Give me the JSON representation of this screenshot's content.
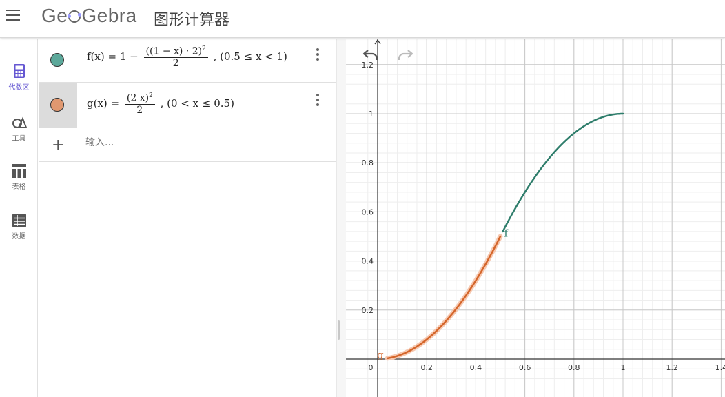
{
  "header": {
    "app_name": "GeoGebra",
    "app_title": "图形计算器"
  },
  "sidebar": {
    "items": [
      {
        "label": "代数区",
        "icon": "calculator-icon",
        "active": true
      },
      {
        "label": "工具",
        "icon": "shapes-icon",
        "active": false
      },
      {
        "label": "表格",
        "icon": "table-icon",
        "active": false
      },
      {
        "label": "数据",
        "icon": "data-icon",
        "active": false
      }
    ]
  },
  "algebra": {
    "f": {
      "color": "#5ca89a",
      "lhs": "f(x)",
      "eq": "=",
      "one": "1 −",
      "num": "((1 − x) · 2)",
      "num_sup": "2",
      "den": "2",
      "domain": ",    (0.5 ≤ x < 1)"
    },
    "g": {
      "color": "#e09870",
      "lhs": "g(x)",
      "eq": "=",
      "num": "(2 x)",
      "num_sup": "2",
      "den": "2",
      "domain": ",    (0 < x ≤ 0.5)"
    },
    "input_placeholder": "输入..."
  },
  "graph": {
    "x_ticks": [
      "0",
      "0.2",
      "0.4",
      "0.6",
      "0.8",
      "1",
      "1.2",
      "1.4"
    ],
    "y_ticks": [
      "0.2",
      "0.4",
      "0.6",
      "0.8",
      "1",
      "1.2"
    ],
    "f_label": "f",
    "g_label": "g",
    "f_color": "#2e7d6b",
    "g_color": "#d4652a"
  }
}
